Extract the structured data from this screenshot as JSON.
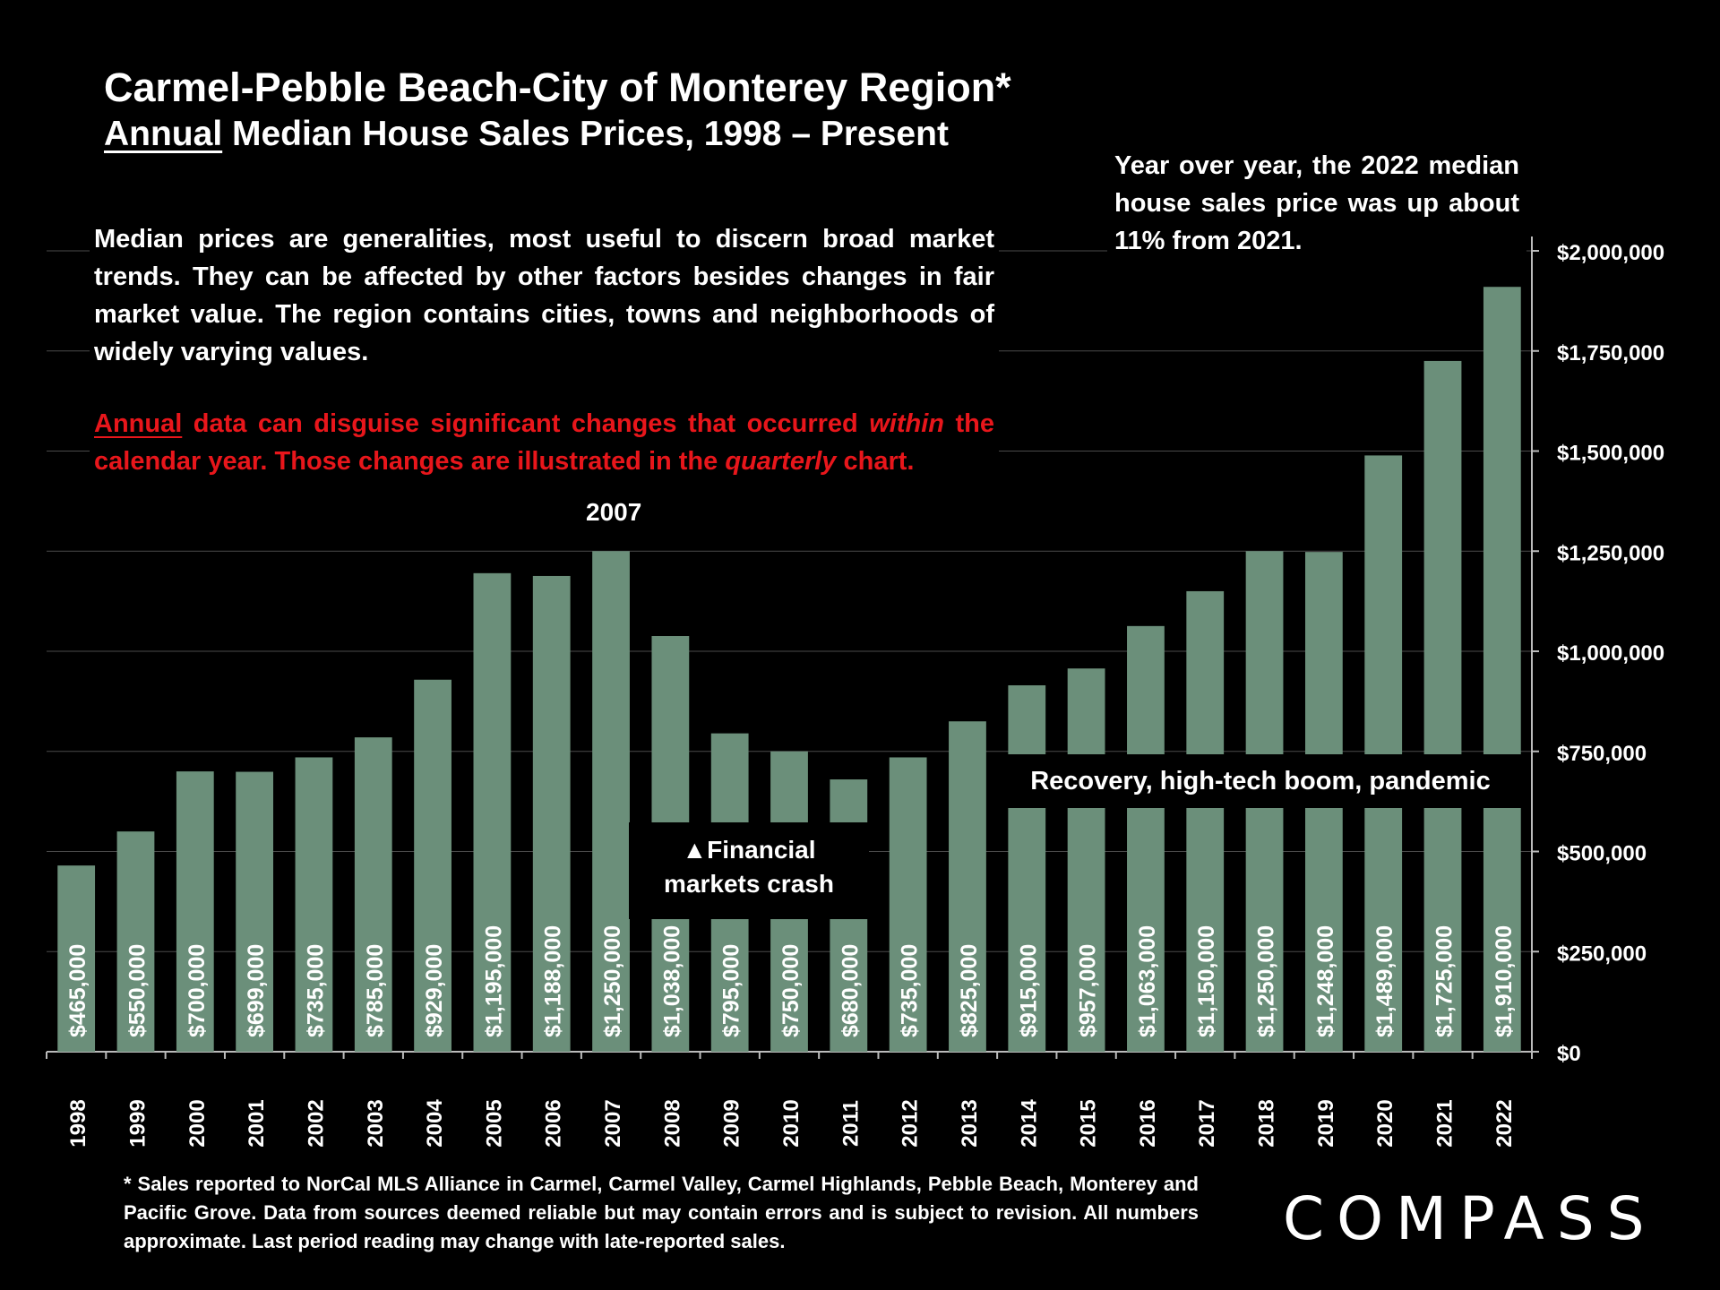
{
  "title": "Carmel-Pebble Beach-City of Monterey Region*",
  "subtitle_underlined": "Annual",
  "subtitle_rest": " Median House Sales Prices, 1998 – Present",
  "note": "Median prices are generalities, most useful to discern broad market trends. They can be affected by other factors besides changes in fair market value. The region contains cities, towns and neighborhoods of widely varying values.",
  "note_red": {
    "p1": "Annual",
    "p2": " data can disguise significant changes that occurred ",
    "p3": "within",
    "p4": " the calendar year. Those changes are illustrated in the ",
    "p5": "quarterly",
    "p6": " chart."
  },
  "yoy_note": "Year over year, the 2022 median house sales price was up about 11% from 2021.",
  "annotations": {
    "peak_year": "2007",
    "crash_line1": "▲Financial",
    "crash_line2": "markets crash",
    "recovery": "Recovery, high-tech boom, pandemic"
  },
  "footnote": "* Sales reported to NorCal MLS Alliance in Carmel, Carmel Valley, Carmel Highlands, Pebble Beach, Monterey and Pacific Grove. Data from sources deemed reliable but may contain errors and is subject to revision. All numbers approximate. Last period reading may change with late-reported sales.",
  "logo": "COMPASS",
  "colors": {
    "bar": "#6b8f7a",
    "background": "#000000",
    "text": "#ffffff",
    "accent_red": "#e8161b",
    "grid": "#4a4a4a"
  },
  "chart_data": {
    "type": "bar",
    "title": "Annual Median House Sales Prices, 1998 – Present",
    "xlabel": "",
    "ylabel": "",
    "ylim": [
      0,
      2000000
    ],
    "y_ticks": [
      0,
      250000,
      500000,
      750000,
      1000000,
      1250000,
      1500000,
      1750000,
      2000000
    ],
    "y_tick_labels": [
      "$0",
      "$250,000",
      "$500,000",
      "$750,000",
      "$1,000,000",
      "$1,250,000",
      "$1,500,000",
      "$1,750,000",
      "$2,000,000"
    ],
    "y_axis_side": "right",
    "grid": true,
    "categories": [
      "1998",
      "1999",
      "2000",
      "2001",
      "2002",
      "2003",
      "2004",
      "2005",
      "2006",
      "2007",
      "2008",
      "2009",
      "2010",
      "2011",
      "2012",
      "2013",
      "2014",
      "2015",
      "2016",
      "2017",
      "2018",
      "2019",
      "2020",
      "2021",
      "2022"
    ],
    "values": [
      465000,
      550000,
      700000,
      699000,
      735000,
      785000,
      929000,
      1195000,
      1188000,
      1250000,
      1038000,
      795000,
      750000,
      680000,
      735000,
      825000,
      915000,
      957000,
      1063000,
      1150000,
      1250000,
      1248000,
      1489000,
      1725000,
      1910000
    ],
    "labels": [
      "$465,000",
      "$550,000",
      "$700,000",
      "$699,000",
      "$735,000",
      "$785,000",
      "$929,000",
      "$1,195,000",
      "$1,188,000",
      "$1,250,000",
      "$1,038,000",
      "$795,000",
      "$750,000",
      "$680,000",
      "$735,000",
      "$825,000",
      "$915,000",
      "$957,000",
      "$1,063,000",
      "$1,150,000",
      "$1,250,000",
      "$1,248,000",
      "$1,489,000",
      "$1,725,000",
      "$1,910,000"
    ]
  }
}
